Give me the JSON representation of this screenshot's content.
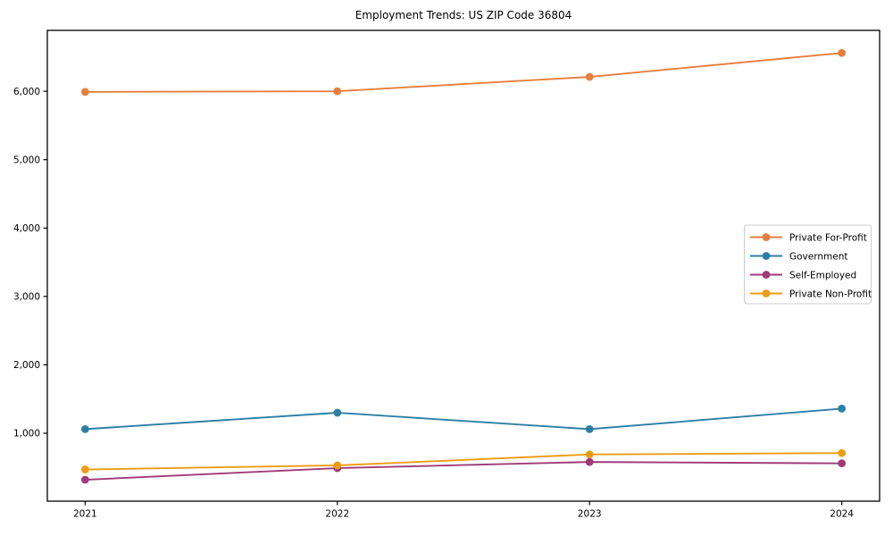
{
  "figure": {
    "background": "#ffffff",
    "spine_color": "#000000",
    "tick_color": "#000000",
    "legend_border_color": "#cccccc",
    "legend_background": "#ffffff"
  },
  "chart_data": {
    "type": "line",
    "title": "Employment Trends: US ZIP Code 36804",
    "xlabel": "",
    "ylabel": "",
    "x": [
      2021,
      2022,
      2023,
      2024
    ],
    "x_tick_labels": [
      "2021",
      "2022",
      "2023",
      "2024"
    ],
    "y_ticks": [
      1000,
      2000,
      3000,
      4000,
      5000,
      6000
    ],
    "y_tick_labels": [
      "1,000",
      "2,000",
      "3,000",
      "4,000",
      "5,000",
      "6,000"
    ],
    "xlim": [
      2020.85,
      2024.15
    ],
    "ylim": [
      7,
      6890
    ],
    "grid": false,
    "legend_position": "center right",
    "marker": "circle",
    "series": [
      {
        "name": "Private For-Profit",
        "color": "#e67e3d",
        "values": [
          5990,
          6000,
          6210,
          6560
        ]
      },
      {
        "name": "Government",
        "color": "#2d7fa5",
        "values": [
          1060,
          1300,
          1060,
          1360
        ]
      },
      {
        "name": "Self-Employed",
        "color": "#a03a78",
        "values": [
          320,
          490,
          580,
          560
        ]
      },
      {
        "name": "Private Non-Profit",
        "color": "#eb9c12",
        "values": [
          470,
          530,
          690,
          710
        ]
      }
    ]
  }
}
